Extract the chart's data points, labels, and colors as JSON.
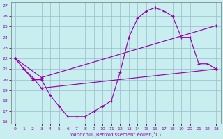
{
  "xlabel": "Windchill (Refroidissement éolien,°C)",
  "xlim": [
    -0.5,
    23.5
  ],
  "ylim": [
    15.8,
    27.3
  ],
  "yticks": [
    16,
    17,
    18,
    19,
    20,
    21,
    22,
    23,
    24,
    25,
    26,
    27
  ],
  "xticks": [
    0,
    1,
    2,
    3,
    4,
    5,
    6,
    7,
    8,
    9,
    10,
    11,
    12,
    13,
    14,
    15,
    16,
    17,
    18,
    19,
    20,
    21,
    22,
    23
  ],
  "line_color": "#9900aa",
  "bg_color": "#c8eef0",
  "grid_color": "#99bbcc",
  "line1_x": [
    0,
    1,
    2,
    3,
    4,
    5,
    6,
    7,
    8,
    9,
    10,
    11,
    12,
    13,
    14,
    15,
    16,
    17,
    18,
    19,
    20,
    21,
    22,
    23
  ],
  "line1_y": [
    22,
    21,
    20,
    20,
    18.5,
    17.5,
    16.5,
    16.5,
    16.5,
    17,
    17.5,
    18,
    20.7,
    24,
    25.8,
    26.5,
    26.8,
    26.5,
    26,
    24,
    24,
    21.5,
    21.5,
    21
  ],
  "line2_x": [
    0,
    1,
    2,
    3,
    23
  ],
  "line2_y": [
    22,
    21,
    20.2,
    19.2,
    21
  ],
  "line3_x": [
    0,
    3,
    23
  ],
  "line3_y": [
    22,
    20.2,
    25.1
  ],
  "marker": "+",
  "lw": 0.85,
  "ms": 3.5,
  "mew": 0.85
}
